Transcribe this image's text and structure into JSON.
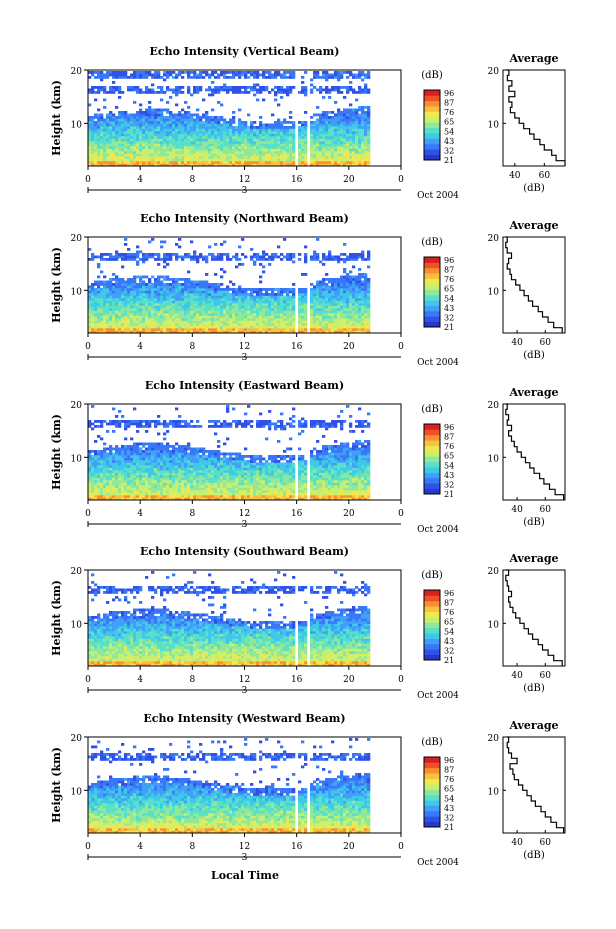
{
  "figure": {
    "xlabel": "Local Time",
    "x_ticks": [
      "0",
      "4",
      "8",
      "12",
      "16",
      "20",
      "0"
    ],
    "day_label": "3",
    "date_label": "Oct 2004",
    "ylabel": "Height (km)",
    "y_ticks": [
      "20",
      "10"
    ],
    "colorbar_unit": "(dB)",
    "colorbar_ticks": [
      "96",
      "87",
      "76",
      "65",
      "54",
      "43",
      "32",
      "21"
    ],
    "average_title": "Average",
    "average_xlabel": "(dB)",
    "colors": {
      "scale": [
        "#2838c8",
        "#3050e8",
        "#3878f8",
        "#40a0f8",
        "#40c8e8",
        "#58e0c8",
        "#90e898",
        "#c8f070",
        "#f0e850",
        "#f8c040",
        "#f89030",
        "#f05028",
        "#d82020"
      ]
    }
  },
  "chart_data": [
    {
      "type": "heatmap",
      "title": "Echo Intensity (Vertical Beam)",
      "xlabel": "Local Time",
      "ylabel": "Height (km)",
      "xlim": [
        0,
        24
      ],
      "ylim": [
        2,
        20
      ],
      "color_range_dB": [
        21,
        98
      ],
      "data_gaps_hours": [
        [
          15.7,
          16.1
        ],
        [
          16.7,
          17.0
        ],
        [
          21.6,
          24
        ]
      ],
      "average_profile": {
        "xlabel": "(dB)",
        "x_ticks": [
          "40",
          "60"
        ],
        "y_ticks": [
          "20",
          "10"
        ],
        "xlim": [
          32,
          74
        ],
        "height_km": [
          2,
          3,
          4,
          5,
          6,
          7,
          8,
          9,
          10,
          11,
          12,
          13,
          14,
          15,
          16,
          17,
          18,
          19,
          20
        ],
        "dB": [
          74,
          68,
          65,
          60,
          57,
          53,
          50,
          46,
          43,
          40,
          37,
          38,
          36,
          40,
          36,
          38,
          35,
          36,
          34
        ]
      }
    },
    {
      "type": "heatmap",
      "title": "Echo Intensity (Northward Beam)",
      "xlabel": "Local Time",
      "ylabel": "Height (km)",
      "xlim": [
        0,
        24
      ],
      "ylim": [
        2,
        20
      ],
      "color_range_dB": [
        21,
        98
      ],
      "data_gaps_hours": [
        [
          15.7,
          16.1
        ],
        [
          16.7,
          17.0
        ],
        [
          21.6,
          24
        ]
      ],
      "average_profile": {
        "xlabel": "(dB)",
        "x_ticks": [
          "40",
          "60"
        ],
        "y_ticks": [
          "20",
          "10"
        ],
        "xlim": [
          30,
          74
        ],
        "height_km": [
          2,
          3,
          4,
          5,
          6,
          7,
          8,
          9,
          10,
          11,
          12,
          13,
          14,
          15,
          16,
          17,
          18,
          19,
          20
        ],
        "dB": [
          72,
          66,
          62,
          58,
          55,
          51,
          48,
          45,
          42,
          39,
          36,
          35,
          33,
          34,
          36,
          33,
          32,
          33,
          32
        ]
      }
    },
    {
      "type": "heatmap",
      "title": "Echo Intensity (Eastward Beam)",
      "xlabel": "Local Time",
      "ylabel": "Height (km)",
      "xlim": [
        0,
        24
      ],
      "ylim": [
        2,
        20
      ],
      "color_range_dB": [
        21,
        98
      ],
      "data_gaps_hours": [
        [
          15.7,
          16.1
        ],
        [
          16.7,
          17.0
        ],
        [
          21.6,
          24
        ]
      ],
      "average_profile": {
        "xlabel": "(dB)",
        "x_ticks": [
          "40",
          "60"
        ],
        "y_ticks": [
          "20",
          "10"
        ],
        "xlim": [
          30,
          74
        ],
        "height_km": [
          2,
          3,
          4,
          5,
          6,
          7,
          8,
          9,
          10,
          11,
          12,
          13,
          14,
          15,
          16,
          17,
          18,
          19,
          20
        ],
        "dB": [
          73,
          67,
          63,
          59,
          56,
          52,
          49,
          46,
          43,
          40,
          38,
          36,
          34,
          36,
          33,
          34,
          32,
          33,
          32
        ]
      }
    },
    {
      "type": "heatmap",
      "title": "Echo Intensity (Southward Beam)",
      "xlabel": "Local Time",
      "ylabel": "Height (km)",
      "xlim": [
        0,
        24
      ],
      "ylim": [
        2,
        20
      ],
      "color_range_dB": [
        21,
        98
      ],
      "data_gaps_hours": [
        [
          15.7,
          16.1
        ],
        [
          16.7,
          17.0
        ],
        [
          21.6,
          24
        ]
      ],
      "average_profile": {
        "xlabel": "(dB)",
        "x_ticks": [
          "40",
          "60"
        ],
        "y_ticks": [
          "20",
          "10"
        ],
        "xlim": [
          30,
          74
        ],
        "height_km": [
          2,
          3,
          4,
          5,
          6,
          7,
          8,
          9,
          10,
          11,
          12,
          13,
          14,
          15,
          16,
          17,
          18,
          19,
          20
        ],
        "dB": [
          72,
          66,
          62,
          58,
          55,
          51,
          48,
          45,
          42,
          39,
          37,
          35,
          34,
          36,
          34,
          33,
          32,
          34,
          32
        ]
      }
    },
    {
      "type": "heatmap",
      "title": "Echo Intensity (Westward Beam)",
      "xlabel": "Local Time",
      "ylabel": "Height (km)",
      "xlim": [
        0,
        24
      ],
      "ylim": [
        2,
        20
      ],
      "color_range_dB": [
        21,
        98
      ],
      "data_gaps_hours": [
        [
          15.7,
          16.1
        ],
        [
          16.7,
          17.0
        ],
        [
          21.6,
          24
        ]
      ],
      "average_profile": {
        "xlabel": "(dB)",
        "x_ticks": [
          "40",
          "60"
        ],
        "y_ticks": [
          "20",
          "10"
        ],
        "xlim": [
          30,
          74
        ],
        "height_km": [
          2,
          3,
          4,
          5,
          6,
          7,
          8,
          9,
          10,
          11,
          12,
          13,
          14,
          15,
          16,
          17,
          18,
          19,
          20
        ],
        "dB": [
          73,
          68,
          64,
          60,
          57,
          53,
          50,
          47,
          44,
          41,
          38,
          37,
          35,
          40,
          36,
          34,
          33,
          34,
          33
        ]
      }
    }
  ]
}
